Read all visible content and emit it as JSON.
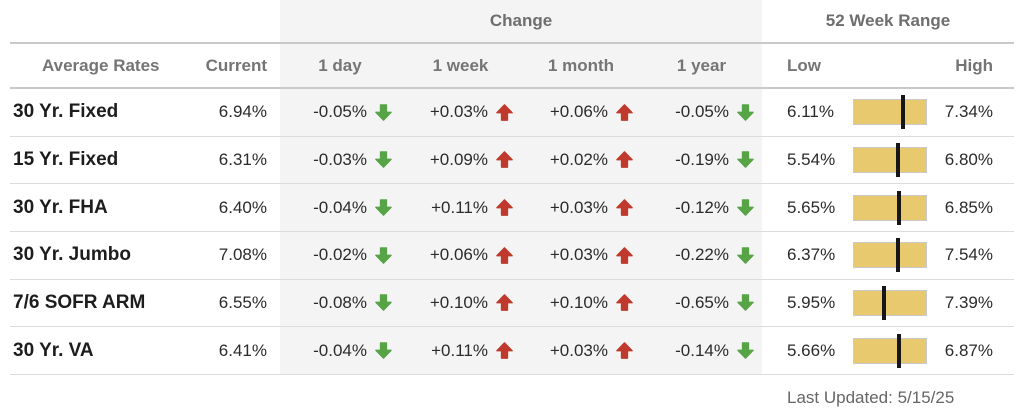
{
  "table": {
    "group_headers": {
      "change": "Change",
      "range": "52 Week Range"
    },
    "columns": {
      "label": "Average Rates",
      "current": "Current",
      "day": "1 day",
      "week": "1 week",
      "month": "1 month",
      "year": "1 year",
      "low": "Low",
      "high": "High"
    },
    "rows": [
      {
        "label": "30 Yr. Fixed",
        "current": "6.94%",
        "changes": [
          {
            "text": "-0.05%",
            "dir": "down"
          },
          {
            "text": "+0.03%",
            "dir": "up"
          },
          {
            "text": "+0.06%",
            "dir": "up"
          },
          {
            "text": "-0.05%",
            "dir": "down"
          }
        ],
        "low": "6.11%",
        "high": "7.34%",
        "range": {
          "low": 6.11,
          "high": 7.34,
          "current": 6.94
        }
      },
      {
        "label": "15 Yr. Fixed",
        "current": "6.31%",
        "changes": [
          {
            "text": "-0.03%",
            "dir": "down"
          },
          {
            "text": "+0.09%",
            "dir": "up"
          },
          {
            "text": "+0.02%",
            "dir": "up"
          },
          {
            "text": "-0.19%",
            "dir": "down"
          }
        ],
        "low": "5.54%",
        "high": "6.80%",
        "range": {
          "low": 5.54,
          "high": 6.8,
          "current": 6.31
        }
      },
      {
        "label": "30 Yr. FHA",
        "current": "6.40%",
        "changes": [
          {
            "text": "-0.04%",
            "dir": "down"
          },
          {
            "text": "+0.11%",
            "dir": "up"
          },
          {
            "text": "+0.03%",
            "dir": "up"
          },
          {
            "text": "-0.12%",
            "dir": "down"
          }
        ],
        "low": "5.65%",
        "high": "6.85%",
        "range": {
          "low": 5.65,
          "high": 6.85,
          "current": 6.4
        }
      },
      {
        "label": "30 Yr. Jumbo",
        "current": "7.08%",
        "changes": [
          {
            "text": "-0.02%",
            "dir": "down"
          },
          {
            "text": "+0.06%",
            "dir": "up"
          },
          {
            "text": "+0.03%",
            "dir": "up"
          },
          {
            "text": "-0.22%",
            "dir": "down"
          }
        ],
        "low": "6.37%",
        "high": "7.54%",
        "range": {
          "low": 6.37,
          "high": 7.54,
          "current": 7.08
        }
      },
      {
        "label": "7/6 SOFR ARM",
        "current": "6.55%",
        "changes": [
          {
            "text": "-0.08%",
            "dir": "down"
          },
          {
            "text": "+0.10%",
            "dir": "up"
          },
          {
            "text": "+0.10%",
            "dir": "up"
          },
          {
            "text": "-0.65%",
            "dir": "down"
          }
        ],
        "low": "5.95%",
        "high": "7.39%",
        "range": {
          "low": 5.95,
          "high": 7.39,
          "current": 6.55
        }
      },
      {
        "label": "30 Yr. VA",
        "current": "6.41%",
        "changes": [
          {
            "text": "-0.04%",
            "dir": "down"
          },
          {
            "text": "+0.11%",
            "dir": "up"
          },
          {
            "text": "+0.03%",
            "dir": "up"
          },
          {
            "text": "-0.14%",
            "dir": "down"
          }
        ],
        "low": "5.66%",
        "high": "6.87%",
        "range": {
          "low": 5.66,
          "high": 6.87,
          "current": 6.41
        }
      }
    ],
    "footer": "Last Updated: 5/15/25"
  },
  "colors": {
    "up_arrow": "#bf3a2c",
    "down_arrow": "#57a447",
    "range_bar": "#e8c96e",
    "range_marker": "#161616"
  },
  "chart_data": {
    "type": "table",
    "title": "",
    "group_headers": [
      {
        "label": "Change",
        "spans": [
          "1 day",
          "1 week",
          "1 month",
          "1 year"
        ]
      },
      {
        "label": "52 Week Range",
        "spans": [
          "Low",
          "High"
        ]
      }
    ],
    "columns": [
      "Average Rates",
      "Current",
      "1 day",
      "1 week",
      "1 month",
      "1 year",
      "Low",
      "High"
    ],
    "units": "%",
    "rows": [
      {
        "label": "30 Yr. Fixed",
        "current": 6.94,
        "change_1day": -0.05,
        "change_1week": 0.03,
        "change_1month": 0.06,
        "change_1year": -0.05,
        "low_52wk": 6.11,
        "high_52wk": 7.34
      },
      {
        "label": "15 Yr. Fixed",
        "current": 6.31,
        "change_1day": -0.03,
        "change_1week": 0.09,
        "change_1month": 0.02,
        "change_1year": -0.19,
        "low_52wk": 5.54,
        "high_52wk": 6.8
      },
      {
        "label": "30 Yr. FHA",
        "current": 6.4,
        "change_1day": -0.04,
        "change_1week": 0.11,
        "change_1month": 0.03,
        "change_1year": -0.12,
        "low_52wk": 5.65,
        "high_52wk": 6.85
      },
      {
        "label": "30 Yr. Jumbo",
        "current": 7.08,
        "change_1day": -0.02,
        "change_1week": 0.06,
        "change_1month": 0.03,
        "change_1year": -0.22,
        "low_52wk": 6.37,
        "high_52wk": 7.54
      },
      {
        "label": "7/6 SOFR ARM",
        "current": 6.55,
        "change_1day": -0.08,
        "change_1week": 0.1,
        "change_1month": 0.1,
        "change_1year": -0.65,
        "low_52wk": 5.95,
        "high_52wk": 7.39
      },
      {
        "label": "30 Yr. VA",
        "current": 6.41,
        "change_1day": -0.04,
        "change_1week": 0.11,
        "change_1month": 0.03,
        "change_1year": -0.14,
        "low_52wk": 5.66,
        "high_52wk": 6.87
      }
    ],
    "last_updated": "5/15/25"
  }
}
